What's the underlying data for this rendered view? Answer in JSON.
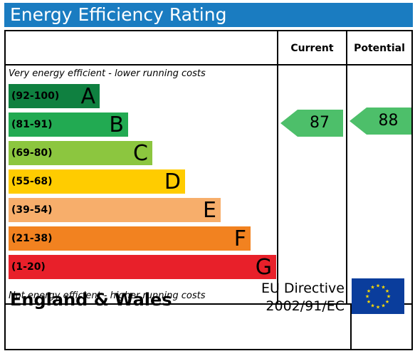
{
  "title": "Energy Efficiency Rating",
  "columns": {
    "current": "Current",
    "potential": "Potential"
  },
  "notes": {
    "top": "Very energy efficient - lower running costs",
    "bottom": "Not energy efficient - higher running costs"
  },
  "bands": [
    {
      "range": "(92-100)",
      "letter": "A",
      "color": "#0f8040"
    },
    {
      "range": "(81-91)",
      "letter": "B",
      "color": "#22aa52"
    },
    {
      "range": "(69-80)",
      "letter": "C",
      "color": "#8cc63f"
    },
    {
      "range": "(55-68)",
      "letter": "D",
      "color": "#ffcc00"
    },
    {
      "range": "(39-54)",
      "letter": "E",
      "color": "#f7ae6b"
    },
    {
      "range": "(21-38)",
      "letter": "F",
      "color": "#f28220"
    },
    {
      "range": "(1-20)",
      "letter": "G",
      "color": "#e8202a"
    }
  ],
  "ratings": {
    "current": {
      "value": "87",
      "band": "B",
      "color": "#4dbf6a"
    },
    "potential": {
      "value": "88",
      "band": "B",
      "color": "#4dbf6a"
    }
  },
  "footer": {
    "region": "England & Wales",
    "directive_line1": "EU Directive",
    "directive_line2": "2002/91/EC"
  },
  "colors": {
    "title_bar": "#1a7cc1",
    "eu_flag": "#0a3d9c",
    "eu_stars": "#ffdd00"
  }
}
